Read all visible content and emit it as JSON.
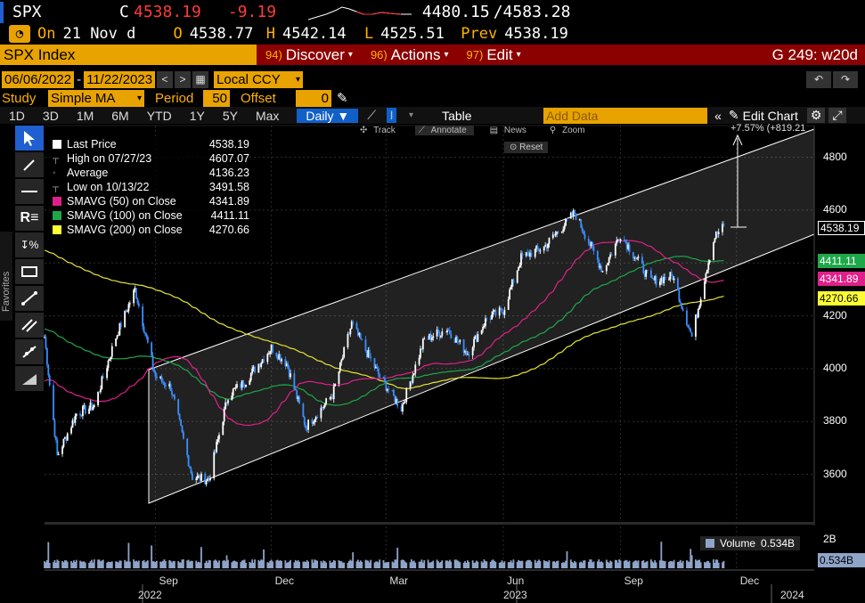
{
  "header": {
    "ticker": "SPX",
    "last_prefix": "C",
    "last": "4538.19",
    "change": "-9.19",
    "range_low": "4480.15",
    "range_high": "/4583.28",
    "on_label": "On",
    "on_date": "21 Nov d",
    "open_label": "O",
    "open": "4538.77",
    "high_label": "H",
    "high": "4542.14",
    "low_label": "L",
    "low": "4525.51",
    "prev_label": "Prev",
    "prev": "4538.19"
  },
  "toolbar": {
    "index_name": "SPX Index",
    "discover_num": "94)",
    "discover": "Discover",
    "actions_num": "96)",
    "actions": "Actions",
    "edit_num": "97)",
    "edit": "Edit",
    "g_label": "G 249: w20d"
  },
  "dates": {
    "start": "06/06/2022",
    "dash": "-",
    "end": "11/22/2023",
    "currency": "Local CCY"
  },
  "study": {
    "label": "Study",
    "value": "Simple MA",
    "period_label": "Period",
    "period": "50",
    "offset_label": "Offset",
    "offset": "0"
  },
  "ranges": [
    "1D",
    "3D",
    "1M",
    "6M",
    "YTD",
    "1Y",
    "5Y",
    "Max"
  ],
  "frequency": "Daily ▼",
  "table_label": "Table",
  "add_data_placeholder": "Add Data",
  "edit_chart": "Edit Chart",
  "favorites": "Favorites",
  "controls": {
    "track": "Track",
    "annotate": "Annotate",
    "news": "News",
    "zoom": "Zoom",
    "reset": "Reset"
  },
  "measure_label": "+7.57% (+819.21",
  "legend": [
    {
      "name": "Last Price",
      "value": "4538.19",
      "color": "#ffffff"
    },
    {
      "name": "High on 07/27/23",
      "value": "4607.07",
      "color": "#888888"
    },
    {
      "name": "Average",
      "value": "4136.23",
      "color": "#888888"
    },
    {
      "name": "Low on 10/13/22",
      "value": "3491.58",
      "color": "#888888"
    },
    {
      "name": "SMAVG (50)  on Close",
      "value": "4341.89",
      "color": "#e0208a"
    },
    {
      "name": "SMAVG (100)  on Close",
      "value": "4411.11",
      "color": "#1ea84a"
    },
    {
      "name": "SMAVG (200)  on Close",
      "value": "4270.66",
      "color": "#ffff33"
    }
  ],
  "volume": {
    "label": "Volume",
    "value": "0.534B",
    "axis_label": "2B",
    "tag": "0.534B"
  },
  "tags": {
    "last": "4538.19",
    "sma100": "4411.11",
    "sma50": "4341.89",
    "sma200": "4270.66"
  },
  "chart_data": {
    "type": "line",
    "y_ticks": [
      "4800",
      "4600",
      "4400",
      "4200",
      "4000",
      "3800",
      "3600"
    ],
    "ylim": [
      3420,
      4920
    ],
    "x_months": [
      "Sep",
      "Dec",
      "Mar",
      "Jun",
      "Sep",
      "Dec"
    ],
    "x_years": [
      "2022",
      "2023",
      "2024"
    ],
    "series": [
      {
        "name": "Last Price",
        "color": "#ffffff",
        "x": [
          "2022-06-06",
          "2022-06-16",
          "2022-07-01",
          "2022-07-15",
          "2022-08-01",
          "2022-08-16",
          "2022-09-01",
          "2022-09-13",
          "2022-09-30",
          "2022-10-13",
          "2022-10-28",
          "2022-11-10",
          "2022-12-01",
          "2022-12-13",
          "2022-12-28",
          "2023-01-18",
          "2023-02-02",
          "2023-02-24",
          "2023-03-13",
          "2023-03-31",
          "2023-04-18",
          "2023-05-04",
          "2023-05-19",
          "2023-06-01",
          "2023-06-15",
          "2023-07-03",
          "2023-07-27",
          "2023-08-18",
          "2023-09-01",
          "2023-09-25",
          "2023-10-12",
          "2023-10-27",
          "2023-11-08",
          "2023-11-14",
          "2023-11-21"
        ],
        "values": [
          4120,
          3670,
          3830,
          3860,
          4120,
          4300,
          3970,
          3930,
          3590,
          3580,
          3900,
          3950,
          4080,
          4020,
          3780,
          3900,
          4170,
          3970,
          3850,
          4110,
          4150,
          4060,
          4190,
          4220,
          4420,
          4460,
          4590,
          4370,
          4510,
          4330,
          4350,
          4120,
          4390,
          4500,
          4538
        ]
      },
      {
        "name": "SMAVG (50)  on Close",
        "color": "#e0208a"
      },
      {
        "name": "SMAVG (100)  on Close",
        "color": "#1ea84a"
      },
      {
        "name": "SMAVG (200)  on Close",
        "color": "#ffff33"
      }
    ]
  }
}
